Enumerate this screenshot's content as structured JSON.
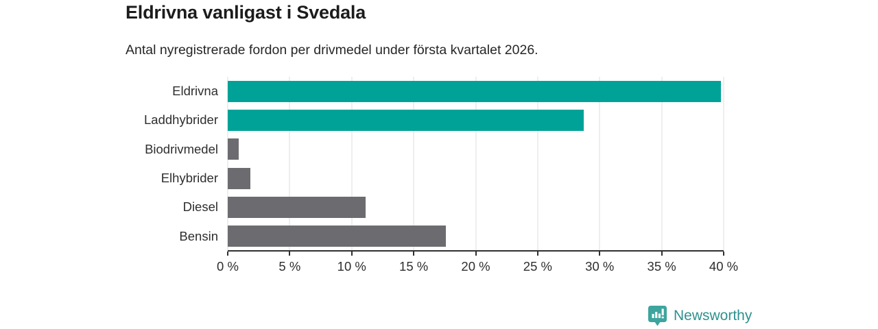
{
  "header": {
    "title": "Eldrivna vanligast i Svedala",
    "subtitle": "Antal nyregistrerade fordon per drivmedel under första kvartalet 2026."
  },
  "chart_data": {
    "type": "bar",
    "orientation": "horizontal",
    "title": "Eldrivna vanligast i Svedala",
    "subtitle": "Antal nyregistrerade fordon per drivmedel under första kvartalet 2026.",
    "categories": [
      "Eldrivna",
      "Laddhybrider",
      "Biodrivmedel",
      "Elhybrider",
      "Diesel",
      "Bensin"
    ],
    "values": [
      39.8,
      28.7,
      0.9,
      1.8,
      11.1,
      17.6
    ],
    "unit": "%",
    "xlabel": "",
    "ylabel": "",
    "xlim": [
      0,
      40
    ],
    "tick_step": 5,
    "tick_labels": [
      "0 %",
      "5 %",
      "10 %",
      "15 %",
      "20 %",
      "25 %",
      "30 %",
      "35 %",
      "40 %"
    ],
    "bar_colors": [
      "#00A298",
      "#00A298",
      "#6C6C70",
      "#6C6C70",
      "#6C6C70",
      "#6C6C70"
    ],
    "grid": true,
    "legend": "none"
  },
  "branding": {
    "logo_text": "Newsworthy",
    "logo_icon": "newsworthy-badge-bar-chart-icon",
    "logo_badge_color": "#3DA59D",
    "logo_text_color": "#2E918F"
  },
  "colors": {
    "accent_teal": "#00A298",
    "bar_gray": "#6C6C70",
    "gridline": "#DDDDDD",
    "axis": "#2F2F2F",
    "text": "#1E1E1E",
    "background": "#FFFFFF"
  }
}
